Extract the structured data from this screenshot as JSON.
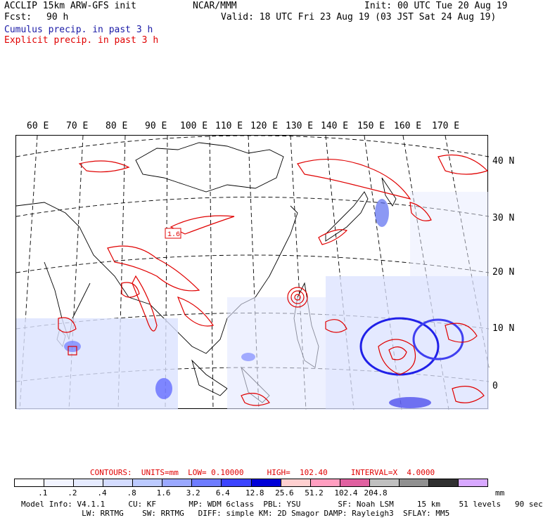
{
  "header": {
    "title": "ACCLIP 15km ARW-GFS init",
    "center": "NCAR/MMM",
    "init": "Init: 00 UTC Tue 20 Aug 19",
    "fcst_label": "Fcst:",
    "fcst_value": "90 h",
    "valid": "Valid: 18 UTC Fri 23 Aug 19 (03 JST Sat 24 Aug 19)",
    "line_cumulus": "Cumulus precip. in past 3 h",
    "line_explicit": "Explicit precip. in past 3 h"
  },
  "map": {
    "lon_labels": [
      "60 E",
      "70 E",
      "80 E",
      "90 E",
      "100 E",
      "110 E",
      "120 E",
      "130 E",
      "140 E",
      "150 E",
      "160 E",
      "170 E"
    ],
    "lat_labels": [
      "40 N",
      "30 N",
      "20 N",
      "10 N",
      "0"
    ],
    "max_label": "1.6",
    "colors": {
      "explicit": "#e00000",
      "cumulus_light": "#c8d4ff",
      "cumulus_mid": "#5a6cf0",
      "cumulus_dark": "#1010e0",
      "coast": "#000000"
    }
  },
  "contours": {
    "text": "CONTOURS:  UNITS=mm  LOW= 0.10000     HIGH=  102.40     INTERVAL=X  4.0000"
  },
  "scale": {
    "colors": [
      "#ffffff",
      "#f2f4ff",
      "#e6ebff",
      "#d4dcff",
      "#bccaff",
      "#9aa8ff",
      "#6e7cff",
      "#3c44ff",
      "#0000d8",
      "#ffd0d0",
      "#ff9ec0",
      "#e060a0",
      "#c0c0c0",
      "#909090",
      "#303030",
      "#d8a8ff"
    ],
    "labels": [
      ".1",
      ".2",
      ".4",
      ".8",
      "1.6",
      "3.2",
      "6.4",
      "12.8",
      "25.6",
      "51.2",
      "102.4",
      "204.8"
    ],
    "unit": "mm"
  },
  "footer": {
    "line1": "Model Info: V4.1.1     CU: KF       MP: WDM 6class  PBL: YSU        SF: Noah LSM     15 km    51 levels   90 sec",
    "line2": "             LW: RRTMG    SW: RRTMG   DIFF: simple KM: 2D Smagor DAMP: Rayleigh3  SFLAY: MM5"
  }
}
